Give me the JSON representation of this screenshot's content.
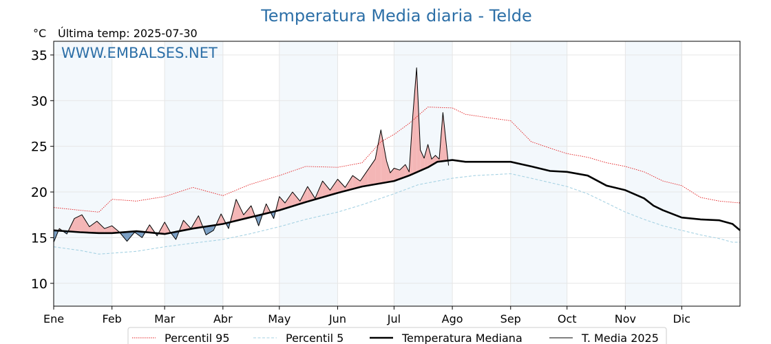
{
  "chart_data": {
    "type": "line",
    "title": "Temperatura Media diaria - Telde",
    "unit": "°C",
    "subtitle": "Última temp: 2025-07-30",
    "watermark": "WWW.EMBALSES.NET",
    "xlabel": "",
    "ylabel": "",
    "ylim": [
      7.5,
      36.5
    ],
    "y_ticks": [
      10,
      15,
      20,
      25,
      30,
      35
    ],
    "x_unit": "day of year",
    "xlim": [
      1,
      366
    ],
    "month_ticks": [
      {
        "label": "Ene",
        "day": 1
      },
      {
        "label": "Feb",
        "day": 32
      },
      {
        "label": "Mar",
        "day": 60
      },
      {
        "label": "Abr",
        "day": 91
      },
      {
        "label": "May",
        "day": 121
      },
      {
        "label": "Jun",
        "day": 152
      },
      {
        "label": "Jul",
        "day": 182
      },
      {
        "label": "Ago",
        "day": 213
      },
      {
        "label": "Sep",
        "day": 244
      },
      {
        "label": "Oct",
        "day": 274
      },
      {
        "label": "Nov",
        "day": 305
      },
      {
        "label": "Dic",
        "day": 335
      }
    ],
    "grid": true,
    "legend_position": "bottom",
    "fill_colors": {
      "above_median": "#f4b6b6",
      "below_median": "#7a9fc4"
    },
    "series": [
      {
        "name": "Percentil 95",
        "style": "dotted",
        "color": "#e31a1c",
        "x": [
          1,
          15,
          25,
          32,
          45,
          60,
          75,
          91,
          105,
          121,
          135,
          152,
          165,
          175,
          182,
          190,
          200,
          213,
          220,
          230,
          244,
          255,
          265,
          274,
          285,
          295,
          305,
          315,
          325,
          335,
          345,
          355,
          366
        ],
        "y": [
          18.3,
          18.0,
          17.8,
          19.2,
          19.0,
          19.5,
          20.5,
          19.6,
          20.8,
          21.8,
          22.8,
          22.7,
          23.2,
          25.5,
          26.3,
          27.5,
          29.3,
          29.2,
          28.5,
          28.2,
          27.8,
          25.5,
          24.8,
          24.2,
          23.8,
          23.2,
          22.8,
          22.2,
          21.2,
          20.7,
          19.4,
          19.0,
          18.8
        ]
      },
      {
        "name": "Percentil 5",
        "style": "dashed",
        "color": "#a6d2e3",
        "x": [
          1,
          15,
          25,
          32,
          45,
          60,
          75,
          91,
          105,
          121,
          135,
          152,
          165,
          182,
          195,
          213,
          225,
          244,
          255,
          274,
          285,
          295,
          305,
          315,
          325,
          335,
          345,
          355,
          362,
          366
        ],
        "y": [
          14.0,
          13.6,
          13.2,
          13.3,
          13.5,
          14.0,
          14.4,
          14.8,
          15.4,
          16.2,
          17.0,
          17.8,
          18.6,
          19.8,
          20.8,
          21.5,
          21.8,
          22.0,
          21.5,
          20.6,
          19.8,
          18.8,
          17.8,
          17.0,
          16.3,
          15.8,
          15.3,
          14.9,
          14.5,
          14.5
        ]
      },
      {
        "name": "Temperatura Mediana",
        "style": "solid-bold",
        "color": "#000000",
        "x": [
          1,
          15,
          25,
          32,
          45,
          60,
          75,
          91,
          105,
          121,
          135,
          152,
          165,
          182,
          190,
          200,
          205,
          213,
          220,
          230,
          244,
          255,
          265,
          274,
          285,
          295,
          305,
          315,
          320,
          325,
          335,
          345,
          355,
          362,
          366
        ],
        "y": [
          15.8,
          15.6,
          15.5,
          15.5,
          15.7,
          15.4,
          16.0,
          16.5,
          17.2,
          18.0,
          18.9,
          19.9,
          20.6,
          21.2,
          21.8,
          22.7,
          23.3,
          23.5,
          23.3,
          23.3,
          23.3,
          22.8,
          22.3,
          22.2,
          21.8,
          20.7,
          20.2,
          19.3,
          18.5,
          18.0,
          17.2,
          17.0,
          16.9,
          16.5,
          15.8
        ]
      },
      {
        "name": "T. Media 2025",
        "style": "solid-thin",
        "color": "#000000",
        "x": [
          1,
          4,
          8,
          12,
          16,
          20,
          24,
          28,
          32,
          36,
          40,
          44,
          48,
          52,
          56,
          60,
          63,
          66,
          70,
          74,
          78,
          82,
          86,
          90,
          94,
          98,
          102,
          106,
          110,
          114,
          118,
          121,
          124,
          128,
          132,
          136,
          140,
          144,
          148,
          152,
          156,
          160,
          164,
          168,
          172,
          175,
          178,
          180,
          182,
          185,
          188,
          190,
          192,
          194,
          196,
          198,
          200,
          202,
          204,
          206,
          208,
          211
        ],
        "y": [
          14.5,
          16.0,
          15.4,
          17.1,
          17.5,
          16.2,
          16.8,
          16.0,
          16.3,
          15.6,
          14.6,
          15.6,
          15.0,
          16.4,
          15.2,
          16.7,
          15.6,
          14.8,
          16.9,
          16.0,
          17.4,
          15.3,
          15.8,
          17.6,
          16.0,
          19.2,
          17.5,
          18.5,
          16.3,
          18.7,
          17.1,
          19.5,
          18.8,
          20.0,
          19.0,
          20.6,
          19.3,
          21.2,
          20.2,
          21.4,
          20.5,
          21.8,
          21.2,
          22.4,
          23.6,
          26.8,
          23.4,
          22.1,
          22.6,
          22.4,
          23.0,
          22.2,
          28.4,
          33.6,
          24.6,
          23.7,
          25.2,
          23.6,
          24.0,
          23.6,
          28.7,
          22.9
        ]
      }
    ]
  }
}
